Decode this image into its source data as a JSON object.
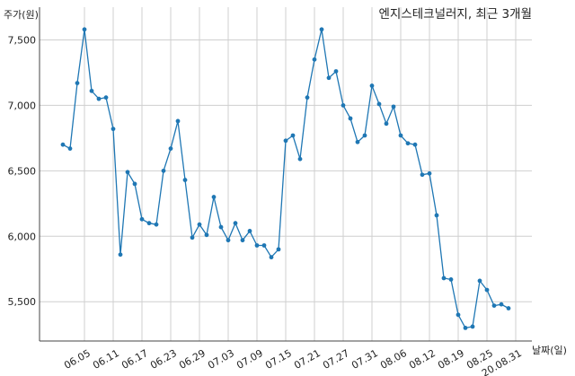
{
  "chart_data": {
    "type": "line",
    "title": "엔지스테크널러지, 최근 3개월",
    "xlabel": "날짜(일)",
    "ylabel": "주가(원)",
    "ylim": [
      5200,
      7750
    ],
    "grid": true,
    "line_color": "#1f77b4",
    "yticks": [
      5500,
      6000,
      6500,
      7000,
      7500
    ],
    "ytick_labels": [
      "5,500",
      "6,000",
      "6,500",
      "7,000",
      "7,500"
    ],
    "xtick_labels": [
      "06.05",
      "06.11",
      "06.17",
      "06.23",
      "06.29",
      "07.03",
      "07.09",
      "07.15",
      "07.21",
      "07.27",
      "07.31",
      "08.06",
      "08.12",
      "08.19",
      "08.25",
      "20.08.31"
    ],
    "xtick_indices": [
      3,
      7,
      11,
      15,
      19,
      23,
      27,
      31,
      35,
      39,
      43,
      47,
      51,
      55,
      59,
      63
    ],
    "series": [
      {
        "values": [
          6700,
          6670,
          7170,
          7580,
          7110,
          7050,
          7060,
          6820,
          5860,
          6490,
          6400,
          6130,
          6100,
          6090,
          6500,
          6670,
          6880,
          6430,
          5990,
          6090,
          6010,
          6300,
          6070,
          5970,
          6100,
          5970,
          6040,
          5930,
          5930,
          5840,
          5900,
          6730,
          6770,
          6590,
          7060,
          7350,
          7580,
          7210,
          7260,
          7000,
          6900,
          6720,
          6770,
          7150,
          7010,
          6860,
          6990,
          6770,
          6710,
          6700,
          6470,
          6480,
          6160,
          5680,
          5670,
          5400,
          5300,
          5310,
          5660,
          5590,
          5470,
          5480,
          5450
        ]
      }
    ]
  }
}
